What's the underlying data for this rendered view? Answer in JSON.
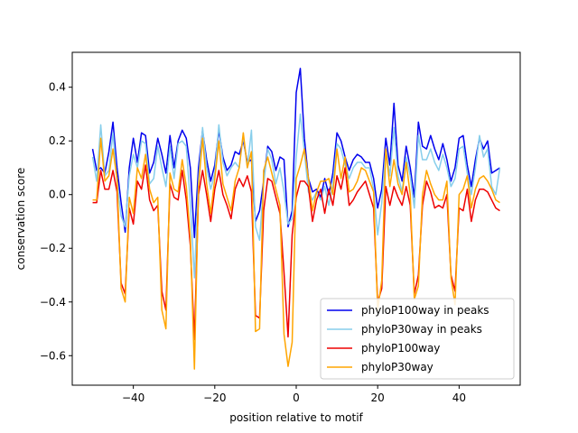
{
  "chart_data": {
    "type": "line",
    "title": "",
    "xlabel": "position relative to motif",
    "ylabel": "conservation score",
    "xlim": [
      -55,
      55
    ],
    "ylim": [
      -0.71,
      0.53
    ],
    "x_ticks": [
      -40,
      -20,
      0,
      20,
      40
    ],
    "x_tick_labels": [
      "−40",
      "−20",
      "0",
      "20",
      "40"
    ],
    "y_ticks": [
      -0.6,
      -0.4,
      -0.2,
      0.0,
      0.2,
      0.4
    ],
    "y_tick_labels": [
      "−0.6",
      "−0.4",
      "−0.2",
      "0.0",
      "0.2",
      "0.4"
    ],
    "grid": false,
    "legend_position": "lower-right",
    "x": [
      -50,
      -49,
      -48,
      -47,
      -46,
      -45,
      -44,
      -43,
      -42,
      -41,
      -40,
      -39,
      -38,
      -37,
      -36,
      -35,
      -34,
      -33,
      -32,
      -31,
      -30,
      -29,
      -28,
      -27,
      -26,
      -25,
      -24,
      -23,
      -22,
      -21,
      -20,
      -19,
      -18,
      -17,
      -16,
      -15,
      -14,
      -13,
      -12,
      -11,
      -10,
      -9,
      -8,
      -7,
      -6,
      -5,
      -4,
      -3,
      -2,
      -1,
      0,
      1,
      2,
      3,
      4,
      5,
      6,
      7,
      8,
      9,
      10,
      11,
      12,
      13,
      14,
      15,
      16,
      17,
      18,
      19,
      20,
      21,
      22,
      23,
      24,
      25,
      26,
      27,
      28,
      29,
      30,
      31,
      32,
      33,
      34,
      35,
      36,
      37,
      38,
      39,
      40,
      41,
      42,
      43,
      44,
      45,
      46,
      47,
      48,
      49,
      50
    ],
    "series": [
      {
        "name": "phyloP100way in peaks",
        "color": "#0000ee",
        "values": [
          0.17,
          0.09,
          0.1,
          0.08,
          0.16,
          0.27,
          0.1,
          -0.03,
          -0.14,
          0.1,
          0.21,
          0.12,
          0.23,
          0.22,
          0.08,
          0.12,
          0.21,
          0.15,
          0.08,
          0.22,
          0.1,
          0.2,
          0.24,
          0.21,
          0.1,
          -0.16,
          0.1,
          0.24,
          0.13,
          0.05,
          0.11,
          0.24,
          0.14,
          0.09,
          0.11,
          0.16,
          0.15,
          0.2,
          0.12,
          0.13,
          -0.1,
          -0.06,
          0.05,
          0.18,
          0.16,
          0.09,
          0.14,
          0.13,
          -0.12,
          -0.06,
          0.38,
          0.47,
          0.21,
          0.06,
          0.01,
          0.02,
          -0.01,
          0.06,
          0.0,
          0.08,
          0.23,
          0.2,
          0.14,
          0.09,
          0.13,
          0.15,
          0.14,
          0.12,
          0.12,
          0.06,
          -0.05,
          0.02,
          0.21,
          0.11,
          0.34,
          0.11,
          0.05,
          0.18,
          0.1,
          -0.01,
          0.27,
          0.18,
          0.17,
          0.22,
          0.17,
          0.13,
          0.19,
          0.13,
          0.05,
          0.1,
          0.21,
          0.22,
          0.11,
          0.03,
          0.13,
          0.21,
          0.17,
          0.2,
          0.08,
          0.09,
          0.1
        ]
      },
      {
        "name": "phyloP30way in peaks",
        "color": "#87ceeb",
        "values": [
          0.14,
          0.05,
          0.26,
          0.07,
          0.09,
          0.23,
          0.05,
          -0.08,
          -0.12,
          0.07,
          0.15,
          0.1,
          0.2,
          0.19,
          0.04,
          0.06,
          0.18,
          0.1,
          0.03,
          0.18,
          0.06,
          0.19,
          0.2,
          0.18,
          -0.03,
          -0.31,
          0.05,
          0.25,
          0.1,
          0.02,
          0.08,
          0.26,
          0.12,
          0.07,
          0.1,
          0.12,
          0.1,
          0.22,
          0.1,
          0.24,
          -0.12,
          -0.17,
          0.04,
          0.17,
          0.13,
          0.04,
          0.1,
          0.01,
          -0.11,
          -0.09,
          0.14,
          0.3,
          0.16,
          0.01,
          -0.02,
          0.01,
          -0.02,
          0.03,
          -0.04,
          0.04,
          0.19,
          0.17,
          0.11,
          0.06,
          0.1,
          0.12,
          0.12,
          0.1,
          0.1,
          0.02,
          -0.15,
          -0.03,
          0.17,
          0.07,
          0.25,
          0.07,
          0.01,
          0.14,
          0.07,
          -0.05,
          0.22,
          0.13,
          0.13,
          0.17,
          0.12,
          0.09,
          0.15,
          0.1,
          0.03,
          0.06,
          0.17,
          0.18,
          0.08,
          0.0,
          0.1,
          0.22,
          0.14,
          0.17,
          0.03,
          0.0,
          0.1
        ]
      },
      {
        "name": "phyloP100way",
        "color": "#ee0000",
        "values": [
          -0.03,
          -0.03,
          0.09,
          0.02,
          0.02,
          0.09,
          0.01,
          -0.33,
          -0.37,
          -0.05,
          -0.11,
          0.05,
          0.02,
          0.11,
          -0.02,
          -0.06,
          -0.04,
          -0.36,
          -0.43,
          0.04,
          -0.01,
          -0.02,
          0.09,
          -0.02,
          -0.19,
          -0.54,
          0.0,
          0.09,
          0.0,
          -0.1,
          0.02,
          0.09,
          0.0,
          -0.04,
          -0.09,
          0.02,
          0.06,
          0.03,
          0.07,
          0.01,
          -0.45,
          -0.46,
          -0.06,
          0.06,
          0.05,
          -0.01,
          -0.07,
          -0.29,
          -0.53,
          -0.15,
          -0.01,
          0.05,
          0.05,
          0.03,
          -0.1,
          -0.02,
          0.02,
          -0.07,
          0.02,
          -0.04,
          0.07,
          0.02,
          0.1,
          -0.04,
          -0.02,
          0.01,
          0.03,
          0.05,
          0.0,
          -0.05,
          -0.4,
          -0.35,
          0.03,
          -0.04,
          0.03,
          -0.01,
          -0.04,
          0.03,
          -0.04,
          -0.37,
          -0.3,
          -0.04,
          0.05,
          0.01,
          -0.05,
          -0.04,
          -0.05,
          0.0,
          -0.3,
          -0.36,
          -0.05,
          -0.06,
          0.02,
          -0.1,
          -0.02,
          0.02,
          0.02,
          0.01,
          -0.02,
          -0.05,
          -0.06
        ]
      },
      {
        "name": "phyloP30way",
        "color": "#ffa500",
        "values": [
          -0.02,
          -0.02,
          0.21,
          0.05,
          0.07,
          0.17,
          0.06,
          -0.35,
          -0.4,
          -0.01,
          -0.07,
          0.1,
          0.06,
          0.15,
          0.02,
          -0.03,
          -0.01,
          -0.43,
          -0.5,
          0.08,
          0.02,
          0.01,
          0.13,
          0.03,
          -0.16,
          -0.65,
          0.03,
          0.21,
          0.04,
          -0.07,
          0.06,
          0.2,
          0.04,
          -0.01,
          -0.06,
          0.05,
          0.1,
          0.23,
          0.1,
          0.16,
          -0.51,
          -0.5,
          0.09,
          0.14,
          0.08,
          0.02,
          -0.04,
          -0.52,
          -0.64,
          -0.55,
          0.06,
          0.11,
          0.17,
          0.06,
          -0.06,
          0.01,
          0.05,
          0.05,
          0.06,
          0.0,
          0.17,
          0.06,
          0.14,
          0.01,
          0.02,
          0.05,
          0.1,
          0.09,
          0.05,
          0.01,
          -0.43,
          -0.32,
          0.17,
          0.03,
          0.13,
          0.04,
          0.0,
          0.12,
          0.0,
          -0.39,
          -0.34,
          0.0,
          0.09,
          0.04,
          0.0,
          -0.02,
          -0.02,
          0.05,
          -0.31,
          -0.41,
          0.0,
          0.02,
          0.07,
          -0.05,
          0.02,
          0.06,
          0.07,
          0.05,
          0.02,
          -0.02,
          -0.03
        ]
      }
    ]
  }
}
